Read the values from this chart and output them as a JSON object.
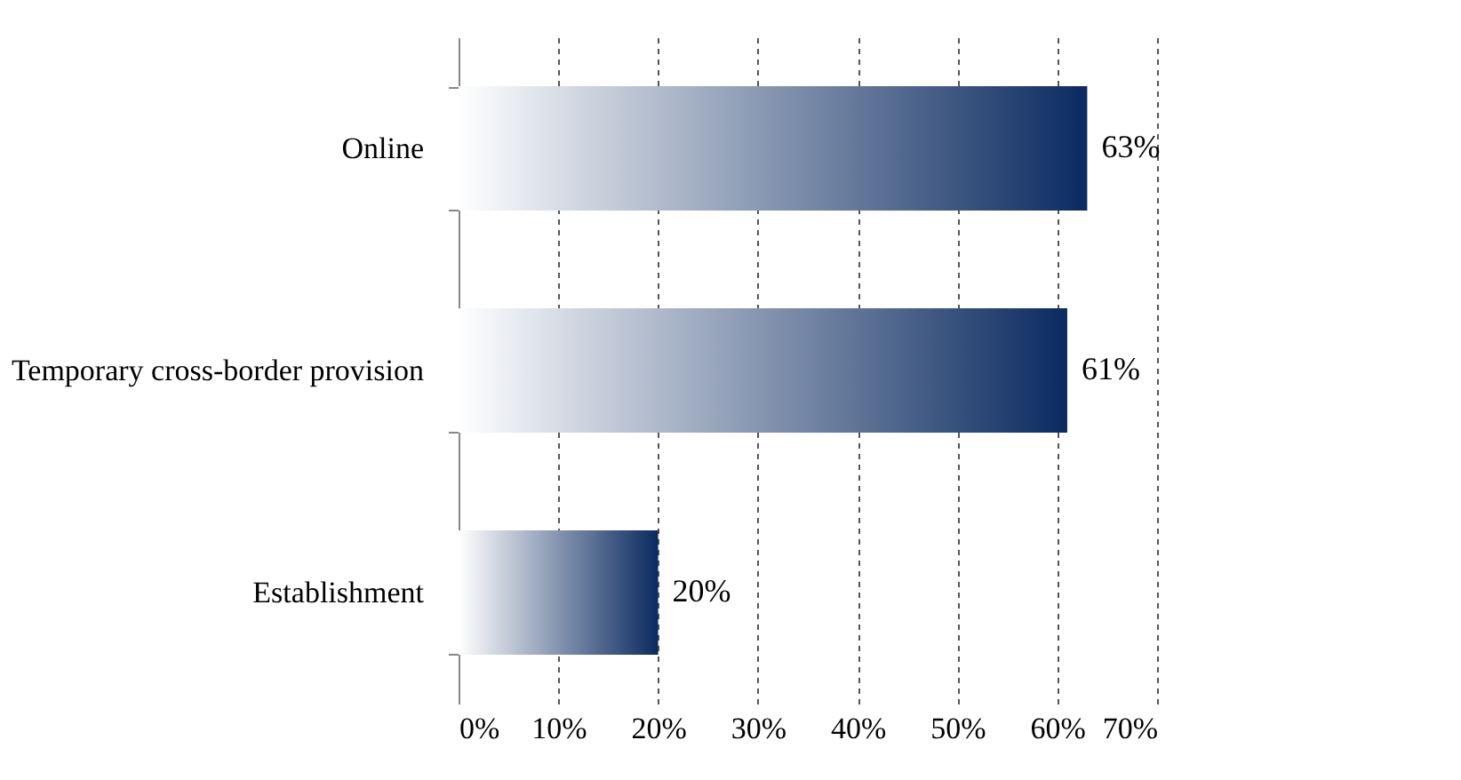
{
  "chart_data": {
    "type": "bar",
    "orientation": "horizontal",
    "categories": [
      "Online",
      "Temporary cross-border provision",
      "Establishment"
    ],
    "values": [
      63,
      61,
      20
    ],
    "color": "#0a2a60",
    "xlim": [
      0,
      70
    ],
    "xticks": [
      {
        "value": 0,
        "label": "0%"
      },
      {
        "value": 10,
        "label": "10%"
      },
      {
        "value": 20,
        "label": "20%"
      },
      {
        "value": 30,
        "label": "30%"
      },
      {
        "value": 40,
        "label": "40%"
      },
      {
        "value": 50,
        "label": "50%"
      },
      {
        "value": 60,
        "label": "60%"
      },
      {
        "value": 70,
        "label": "70%"
      }
    ],
    "value_labels": [
      "63%",
      "61%",
      "20%"
    ],
    "grid": "x"
  }
}
